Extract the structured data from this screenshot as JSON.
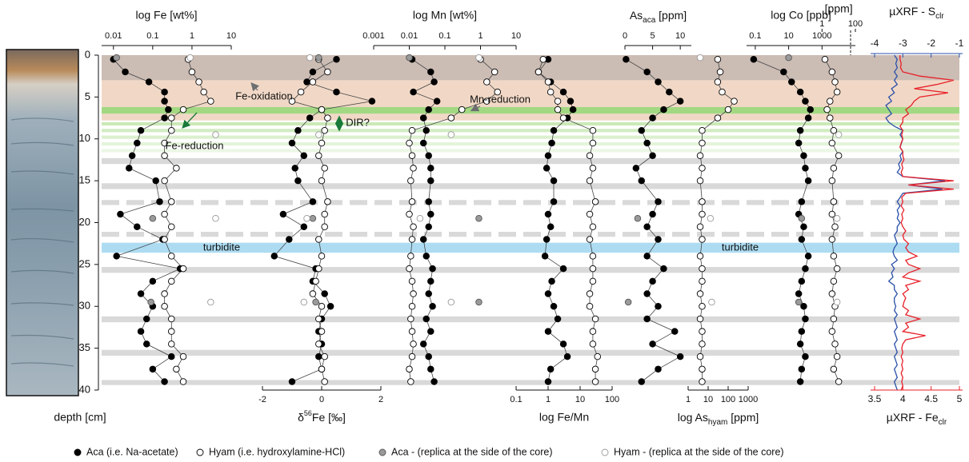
{
  "chart_data": {
    "type": "profiles",
    "ylabel": "depth [cm]",
    "ylim": [
      0,
      40
    ],
    "yticks": [
      0,
      5,
      10,
      15,
      20,
      25,
      30,
      35,
      40
    ],
    "depth": [
      0.5,
      2,
      3.2,
      4.4,
      5.5,
      6.5,
      7.5,
      9,
      10.5,
      12,
      13.5,
      15,
      17.5,
      19,
      20.5,
      22,
      24,
      25.5,
      27,
      28.5,
      30,
      31.5,
      33,
      34.5,
      36,
      37.5,
      39
    ],
    "replica_depth": [
      0.3,
      9.5,
      19.5,
      29.5
    ],
    "groups": [
      {
        "name": "Aca (i.e. Na-acetate)",
        "color": "#000000",
        "stroke": "#000000"
      },
      {
        "name": "Hyam (i.e. hydroxylamine-HCl)",
        "color": "#ffffff",
        "stroke": "#000000"
      },
      {
        "name": "Aca - (replica at the side of the core)",
        "color": "#9a9a9a",
        "stroke": "#555555"
      },
      {
        "name": "Hyam - (replica at the side of the core)",
        "color": "#ffffff",
        "stroke": "#9a9a9a"
      }
    ],
    "bands": [
      {
        "range": [
          0,
          3
        ],
        "color": "#cbbcb4"
      },
      {
        "range": [
          3,
          6.2
        ],
        "color": "#f1d8c6"
      },
      {
        "range": [
          6.2,
          7
        ],
        "color": "#a3d883"
      },
      {
        "range": [
          7,
          7.8
        ],
        "color": "#f1d8c6"
      },
      {
        "range": [
          8,
          8.4
        ],
        "color": "#cbe9b8"
      },
      {
        "range": [
          8.8,
          9.2
        ],
        "color": "#d3ecc3"
      },
      {
        "range": [
          9.6,
          10
        ],
        "color": "#dcf0cf"
      },
      {
        "range": [
          10.4,
          10.8
        ],
        "color": "#e4f4da"
      },
      {
        "range": [
          11.2,
          11.6
        ],
        "color": "#ecf7e5"
      },
      {
        "range": [
          12.3,
          13
        ],
        "color": "#d9d9d9"
      },
      {
        "range": [
          15.3,
          16
        ],
        "color": "#d9d9d9"
      },
      {
        "range": [
          17.3,
          17.9
        ],
        "color": "#d9d9d9",
        "dashed": true
      },
      {
        "range": [
          21.1,
          21.7
        ],
        "color": "#d9d9d9",
        "dashed": true
      },
      {
        "range": [
          22.4,
          23.6
        ],
        "color": "#addcf2"
      },
      {
        "range": [
          25.3,
          26
        ],
        "color": "#d9d9d9"
      },
      {
        "range": [
          31.2,
          31.9
        ],
        "color": "#d9d9d9"
      },
      {
        "range": [
          35.2,
          35.9
        ],
        "color": "#d9d9d9"
      },
      {
        "range": [
          38.8,
          39.4
        ],
        "color": "#d9d9d9"
      }
    ],
    "annotations": [
      {
        "text": "Fe-oxidation",
        "color": "#6d6e70"
      },
      {
        "text": "Mn-reduction",
        "color": "#6d6e70"
      },
      {
        "text": "Fe-reduction",
        "color": "#1a7a3a"
      },
      {
        "text": "DIR?",
        "color": "#1a7a3a"
      },
      {
        "text": "turbidite",
        "color": "#2a7ab8"
      },
      {
        "text": "turbidite",
        "color": "#2a7ab8"
      }
    ],
    "panels": [
      {
        "xlabel": "log Fe [wt%]",
        "side": "top",
        "log": true,
        "xlim": [
          0.005,
          10
        ],
        "xticks": [
          0.01,
          0.1,
          1,
          10
        ],
        "aca": [
          0.01,
          0.02,
          0.08,
          0.2,
          0.2,
          0.25,
          0.2,
          0.05,
          0.04,
          0.03,
          0.025,
          0.12,
          0.15,
          0.015,
          0.04,
          0.18,
          0.012,
          0.5,
          0.1,
          0.05,
          0.1,
          0.07,
          0.05,
          0.07,
          0.3,
          0.1,
          0.2
        ],
        "hyam": [
          0.8,
          1,
          1.5,
          2,
          3,
          0.6,
          0.3,
          0.3,
          0.2,
          0.2,
          0.4,
          0.2,
          0.3,
          0.2,
          0.3,
          0.2,
          0.3,
          0.6,
          0.3,
          0.2,
          0.2,
          0.3,
          0.3,
          0.3,
          0.6,
          0.4,
          0.6
        ],
        "rep_aca": [
          0.012,
          null,
          0.1,
          0.09
        ],
        "rep_hyam": [
          0.9,
          4,
          4,
          3
        ]
      },
      {
        "xlabel": [
          "δ",
          "56",
          "Fe [‰]"
        ],
        "sup": 1,
        "side": "bottom",
        "log": false,
        "xlim": [
          -2,
          2
        ],
        "xticks": [
          -2,
          0,
          2
        ],
        "aca": [
          0.5,
          -0.3,
          -0.5,
          0.5,
          1.7,
          0,
          -0.4,
          -0.8,
          -1,
          -0.6,
          -0.9,
          -0.8,
          -0.3,
          -1.3,
          -0.6,
          -1.1,
          -1.6,
          -0.2,
          -0.3,
          0.1,
          0.3,
          0,
          -0.1,
          0,
          -0.1,
          0,
          -1
        ],
        "hyam": [
          -0.1,
          0.2,
          -0.3,
          -0.7,
          -1,
          0,
          0.2,
          0.1,
          0,
          -0.1,
          0.1,
          0,
          0.2,
          0.1,
          0.1,
          -0.1,
          0,
          -0.1,
          -0.2,
          -0.3,
          0,
          -0.1,
          0,
          -0.1,
          0.1,
          0,
          0.1
        ],
        "rep_aca": [
          -0.1,
          null,
          -0.3,
          -0.2
        ],
        "rep_hyam": [
          -0.4,
          -0.1,
          -0.5,
          -0.6
        ]
      },
      {
        "xlabel": "log Mn [wt%]",
        "side": "top",
        "log": true,
        "xlim": [
          0.001,
          10
        ],
        "xticks": [
          0.001,
          0.01,
          0.1,
          1,
          10
        ],
        "aca": [
          0.012,
          0.04,
          0.05,
          0.013,
          0.06,
          0.035,
          0.025,
          0.03,
          0.025,
          0.035,
          0.04,
          0.04,
          0.035,
          0.04,
          0.035,
          0.025,
          0.03,
          0.045,
          0.04,
          0.035,
          0.045,
          0.03,
          0.04,
          0.025,
          0.035,
          0.04,
          0.05
        ],
        "hyam": [
          1,
          2.5,
          1.5,
          3,
          1.5,
          0.3,
          0.15,
          0.012,
          0.01,
          0.012,
          0.013,
          0.011,
          0.012,
          0.01,
          0.013,
          0.012,
          0.011,
          0.01,
          0.012,
          0.013,
          0.012,
          0.011,
          0.012,
          0.013,
          0.012,
          0.01,
          0.011
        ],
        "rep_aca": [
          0.01,
          null,
          0.9,
          0.9
        ],
        "rep_hyam": [
          0.9,
          0.15,
          0.02,
          0.15
        ]
      },
      {
        "xlabel": "log Fe/Mn",
        "side": "bottom",
        "log": true,
        "xlim": [
          0.1,
          100
        ],
        "xticks": [
          0.1,
          1,
          10,
          100
        ],
        "aca": [
          1,
          0.5,
          1.2,
          3,
          5,
          6,
          4,
          1.5,
          1.3,
          1,
          0.9,
          1.5,
          1.5,
          1,
          1.2,
          0.9,
          0.8,
          3,
          1.3,
          1,
          1.5,
          2,
          1,
          3,
          4,
          1.2,
          1
        ],
        "hyam": [
          0.7,
          0.5,
          1,
          1.2,
          2,
          2,
          3,
          25,
          25,
          20,
          25,
          20,
          30,
          20,
          25,
          20,
          25,
          25,
          25,
          20,
          20,
          30,
          25,
          25,
          35,
          30,
          30
        ]
      },
      {
        "xlabel": [
          "As",
          "aca",
          " [ppm]"
        ],
        "sub": 1,
        "side": "top",
        "log": false,
        "xlim": [
          0,
          12
        ],
        "xticks": [
          0,
          5,
          10
        ],
        "aca": [
          0.2,
          4,
          6,
          8,
          10,
          7,
          5,
          3,
          4,
          5,
          2,
          3,
          6,
          5,
          4,
          6,
          4,
          7,
          5,
          4,
          6,
          4,
          9,
          5,
          10,
          6,
          3
        ],
        "rep_aca": [
          null,
          null,
          2.3,
          0.6
        ]
      },
      {
        "xlabel": [
          "log As",
          "hyam",
          " [ppm]"
        ],
        "sub": 1,
        "side": "bottom",
        "log": true,
        "xlim": [
          1,
          1000
        ],
        "xticks": [
          1,
          10,
          100,
          1000
        ],
        "hyam": [
          30,
          40,
          30,
          50,
          200,
          100,
          30,
          5,
          5,
          4,
          5,
          4,
          5,
          5,
          4,
          5,
          4,
          5,
          5,
          4,
          5,
          4,
          5,
          5,
          4,
          5,
          5
        ],
        "rep_hyam": [
          4,
          null,
          13,
          15
        ]
      },
      {
        "xlabel": "log Co [ppb]",
        "side": "top",
        "log": true,
        "xlim": [
          0.03,
          100000
        ],
        "xticks": [
          0.1,
          10,
          1000
        ],
        "ppm": {
          "xlabel": "[ppm]",
          "xlim": [
            3e-05,
            100
          ],
          "xticks": [
            1,
            100
          ]
        },
        "aca": [
          0.08,
          5,
          15,
          50,
          100,
          200,
          150,
          50,
          40,
          80,
          100,
          150,
          60,
          40,
          80,
          60,
          150,
          100,
          60,
          40,
          80,
          100,
          60,
          50,
          100,
          60,
          50
        ],
        "hyam": [
          1500,
          4000,
          6000,
          8000,
          3000,
          2000,
          3000,
          5000,
          4000,
          10000,
          5000,
          4000,
          5000,
          4000,
          6000,
          4000,
          5000,
          8000,
          5000,
          4000,
          6000,
          5000,
          4000,
          6000,
          8000,
          5000,
          10000
        ],
        "rep_aca": [
          10,
          null,
          60,
          40
        ],
        "rep_hyam": [
          null,
          10000,
          8000,
          8000
        ]
      }
    ],
    "xrf": {
      "type": "line",
      "depth": [
        0,
        0.5,
        1,
        1.5,
        2,
        2.5,
        3,
        3.5,
        4,
        4.5,
        5,
        5.5,
        6,
        6.5,
        7,
        7.5,
        8,
        8.5,
        9,
        9.5,
        10,
        10.5,
        11,
        11.5,
        12,
        12.5,
        13,
        13.5,
        14,
        14.5,
        15,
        15.5,
        16,
        16.5,
        17,
        17.5,
        18,
        18.5,
        19,
        19.5,
        20,
        20.5,
        21,
        21.5,
        22,
        22.5,
        23,
        23.5,
        24,
        24.5,
        25,
        25.5,
        26,
        26.5,
        27,
        27.5,
        28,
        28.5,
        29,
        29.5,
        30,
        30.5,
        31,
        31.5,
        32,
        32.5,
        33,
        33.5,
        34,
        34.5,
        35,
        35.5,
        36,
        36.5,
        37,
        37.5,
        38,
        38.5,
        39,
        39.5,
        40
      ],
      "series": [
        {
          "xlabel": [
            "µXRF - S",
            "clr"
          ],
          "sub": 1,
          "color": "#2b50a8",
          "side": "top",
          "xlim": [
            -4,
            -1
          ],
          "xticks": [
            -4,
            -3,
            -2,
            -1
          ],
          "values": [
            -3.3,
            -3.2,
            -3.25,
            -3.2,
            -3.3,
            -3.2,
            -3.3,
            -3.2,
            -3.4,
            -3.3,
            -3.5,
            -3.4,
            -3.6,
            -3.5,
            -3.4,
            -3.6,
            -3.5,
            -3.3,
            -3.0,
            -3.1,
            -3.0,
            -3.05,
            -3.1,
            -3.0,
            -3.1,
            -3.05,
            -3.15,
            -3.1,
            -3.2,
            -3.0,
            -1.5,
            -2.8,
            -1.6,
            -3.0,
            -3.1,
            -3.2,
            -3.1,
            -3.2,
            -3.15,
            -3.2,
            -3.1,
            -3.2,
            -3.2,
            -3.3,
            -3.25,
            -3.2,
            -3.3,
            -3.35,
            -3.3,
            -3.2,
            -3.4,
            -3.3,
            -3.4,
            -3.35,
            -3.5,
            -3.3,
            -3.3,
            -3.2,
            -3.3,
            -3.3,
            -3.25,
            -3.3,
            -3.2,
            -3.3,
            -3.25,
            -3.2,
            -3.3,
            -3.25,
            -3.2,
            -3.3,
            -3.25,
            -3.2,
            -3.3,
            -3.25,
            -3.2,
            -3.3,
            -3.25,
            -3.2,
            -3.3,
            -3.25,
            -3.2
          ]
        },
        {
          "xlabel": [
            "µXRF - Fe",
            "clr"
          ],
          "sub": 1,
          "color": "#e8202a",
          "side": "bottom",
          "xlim": [
            3.5,
            5
          ],
          "xticks": [
            3.5,
            4,
            4.5,
            5
          ],
          "values": [
            3.95,
            3.95,
            3.97,
            3.96,
            4.0,
            4.3,
            4.9,
            4.6,
            4.2,
            4.8,
            4.3,
            4.2,
            4.15,
            4.05,
            4.1,
            4.0,
            4.0,
            3.95,
            4.0,
            3.98,
            4.0,
            3.97,
            3.95,
            4.0,
            4.0,
            4.02,
            3.98,
            4.0,
            3.97,
            4.0,
            4.9,
            4.1,
            4.9,
            4.05,
            3.98,
            4.0,
            3.97,
            4.02,
            3.98,
            4.0,
            3.97,
            4.0,
            4.05,
            4.0,
            4.02,
            4.1,
            4.05,
            4.1,
            4.25,
            4.05,
            4.1,
            4.3,
            4.1,
            4.0,
            4.3,
            4.05,
            4.1,
            4.0,
            4.05,
            4.02,
            4.0,
            4.1,
            4.05,
            4.3,
            4.05,
            4.1,
            4.0,
            4.4,
            4.05,
            4.0,
            3.98,
            4.0,
            3.97,
            4.0,
            3.98,
            4.0,
            3.97,
            4.0,
            3.98,
            4.0,
            3.97
          ]
        }
      ]
    }
  }
}
